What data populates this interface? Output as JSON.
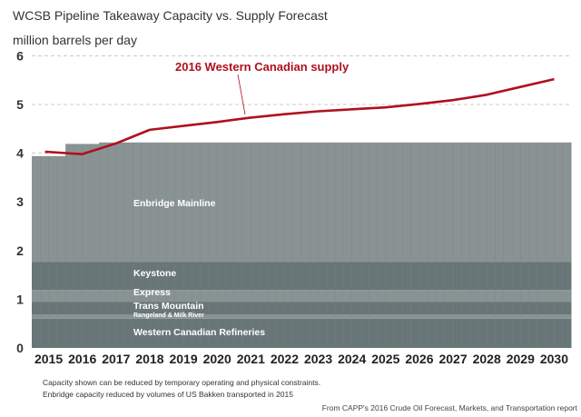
{
  "chart_data": {
    "type": "area",
    "title": "WCSB Pipeline Takeaway Capacity vs. Supply Forecast",
    "ylabel": "million barrels per day",
    "xlabel": "",
    "ylim": [
      0,
      6
    ],
    "yticks": [
      "0",
      "1",
      "2",
      "3",
      "4",
      "5",
      "6"
    ],
    "categories": [
      "2015",
      "2016",
      "2017",
      "2018",
      "2019",
      "2020",
      "2021",
      "2022",
      "2023",
      "2024",
      "2025",
      "2026",
      "2027",
      "2028",
      "2029",
      "2030"
    ],
    "grid": "dashed horizontal",
    "stacked_series": [
      {
        "name": "Western Canadian Refineries",
        "color": "#687677",
        "values": [
          0.6,
          0.6,
          0.6,
          0.6,
          0.6,
          0.6,
          0.6,
          0.6,
          0.6,
          0.6,
          0.6,
          0.6,
          0.6,
          0.6,
          0.6,
          0.6
        ]
      },
      {
        "name": "Rangeland & Milk River",
        "color": "#8a9394",
        "values": [
          0.09,
          0.09,
          0.09,
          0.09,
          0.09,
          0.09,
          0.09,
          0.09,
          0.09,
          0.09,
          0.09,
          0.09,
          0.09,
          0.09,
          0.09,
          0.09
        ]
      },
      {
        "name": "Trans Mountain",
        "color": "#687677",
        "values": [
          0.26,
          0.26,
          0.26,
          0.26,
          0.26,
          0.26,
          0.26,
          0.26,
          0.26,
          0.26,
          0.26,
          0.26,
          0.26,
          0.26,
          0.26,
          0.26
        ]
      },
      {
        "name": "Express",
        "color": "#8a9394",
        "values": [
          0.24,
          0.24,
          0.24,
          0.24,
          0.24,
          0.24,
          0.24,
          0.24,
          0.24,
          0.24,
          0.24,
          0.24,
          0.24,
          0.24,
          0.24,
          0.24
        ]
      },
      {
        "name": "Keystone",
        "color": "#687677",
        "values": [
          0.58,
          0.58,
          0.58,
          0.58,
          0.58,
          0.58,
          0.58,
          0.58,
          0.58,
          0.58,
          0.58,
          0.58,
          0.58,
          0.58,
          0.58,
          0.58
        ]
      },
      {
        "name": "Enbridge Mainline",
        "color": "#8a9394",
        "values": [
          2.17,
          2.42,
          2.45,
          2.45,
          2.45,
          2.45,
          2.45,
          2.45,
          2.45,
          2.45,
          2.45,
          2.45,
          2.45,
          2.45,
          2.45,
          2.45
        ]
      }
    ],
    "line_series": {
      "name": "2016 Western Canadian supply",
      "color": "#b0101e",
      "values": [
        4.03,
        3.98,
        4.2,
        4.48,
        4.56,
        4.64,
        4.73,
        4.8,
        4.86,
        4.9,
        4.94,
        5.01,
        5.09,
        5.2,
        5.36,
        5.52
      ]
    },
    "notes": [
      "Capacity shown can be reduced by temporary operating and physical constraints.",
      "Enbridge capacity reduced by volumes of US Bakken transported in 2015"
    ],
    "source": "From CAPP's  2016 Crude Oil Forecast, Markets, and Transportation report"
  }
}
